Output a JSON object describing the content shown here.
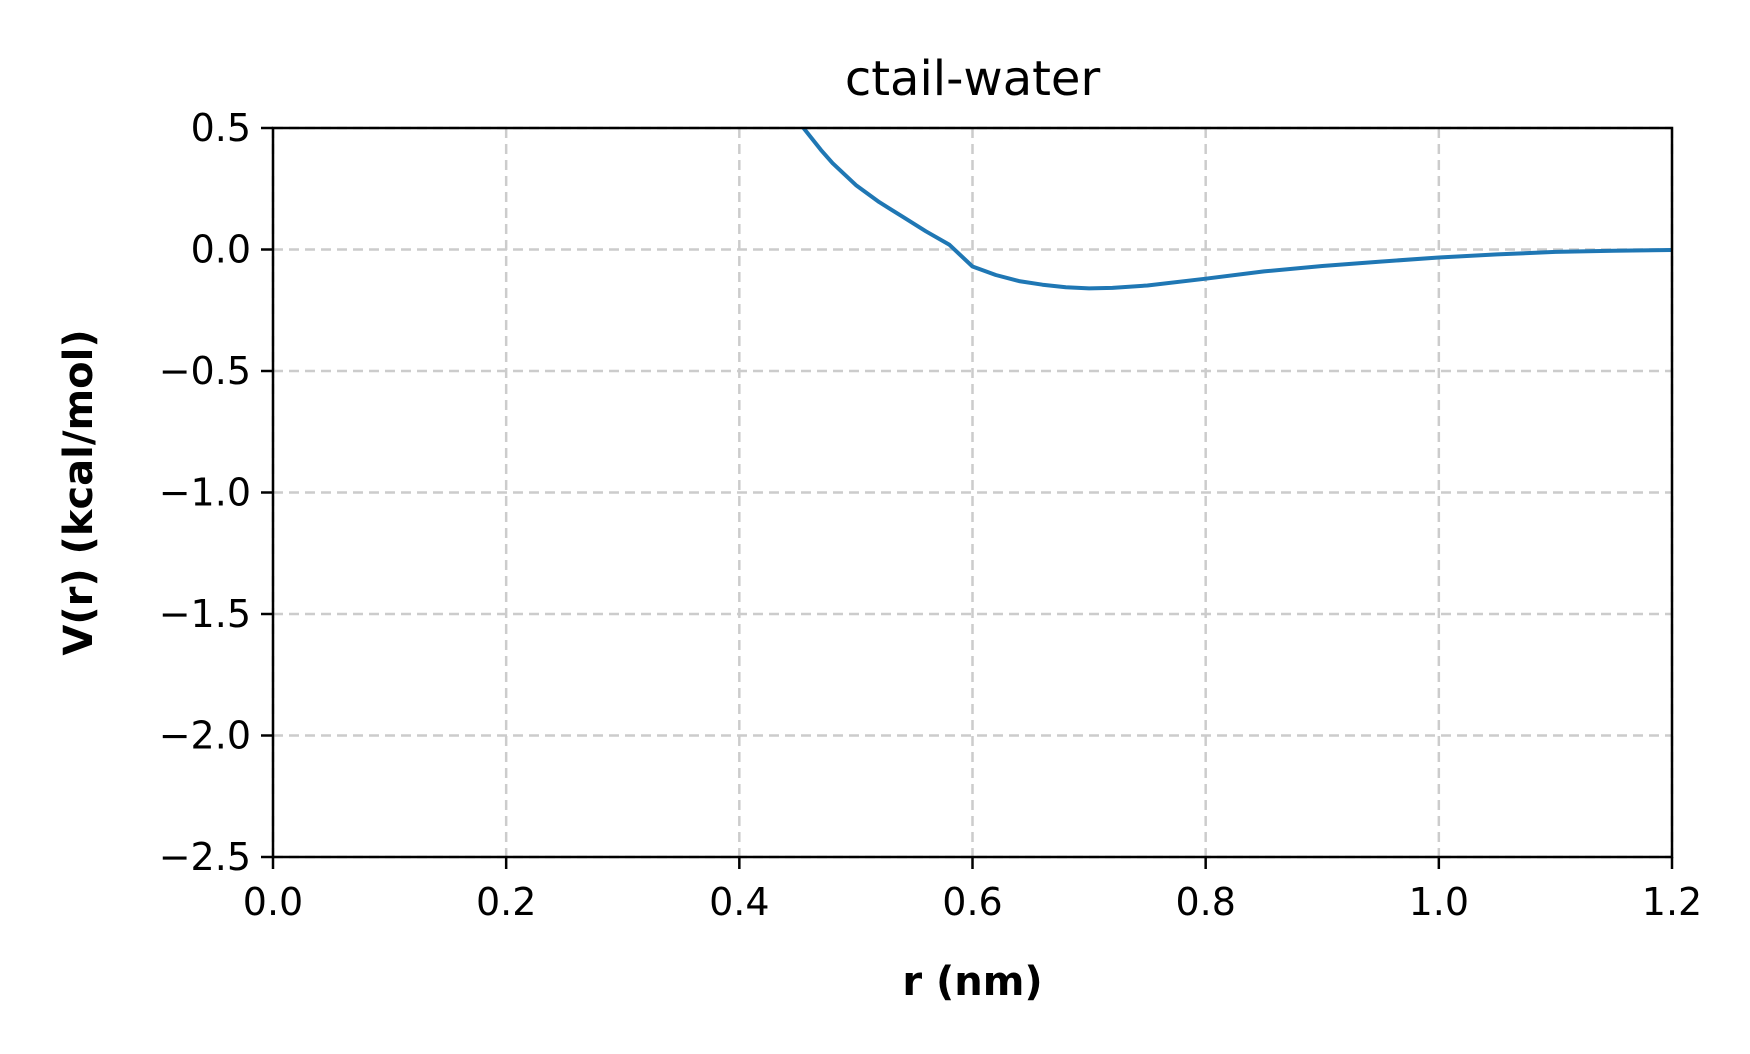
{
  "chart_data": {
    "type": "line",
    "title": "ctail-water",
    "xlabel": "r (nm)",
    "ylabel": "V(r) (kcal/mol)",
    "xlim": [
      0.0,
      1.2
    ],
    "ylim": [
      -2.5,
      0.5
    ],
    "xticks": [
      "0.0",
      "0.2",
      "0.4",
      "0.6",
      "0.8",
      "1.0",
      "1.2"
    ],
    "yticks": [
      "0.5",
      "0.0",
      "−0.5",
      "−1.0",
      "−1.5",
      "−2.0",
      "−2.5"
    ],
    "grid": true,
    "grid_style": "dashed",
    "series": [
      {
        "color": "#1f77b4",
        "x": [
          0.455,
          0.47,
          0.48,
          0.5,
          0.52,
          0.54,
          0.56,
          0.58,
          0.6,
          0.62,
          0.64,
          0.66,
          0.68,
          0.7,
          0.72,
          0.75,
          0.8,
          0.85,
          0.9,
          0.95,
          1.0,
          1.05,
          1.1,
          1.15,
          1.2
        ],
        "y": [
          0.5,
          0.41,
          0.355,
          0.265,
          0.195,
          0.135,
          0.075,
          0.02,
          -0.07,
          -0.105,
          -0.13,
          -0.145,
          -0.155,
          -0.16,
          -0.158,
          -0.148,
          -0.12,
          -0.09,
          -0.068,
          -0.05,
          -0.033,
          -0.02,
          -0.01,
          -0.005,
          -0.002
        ]
      }
    ]
  }
}
